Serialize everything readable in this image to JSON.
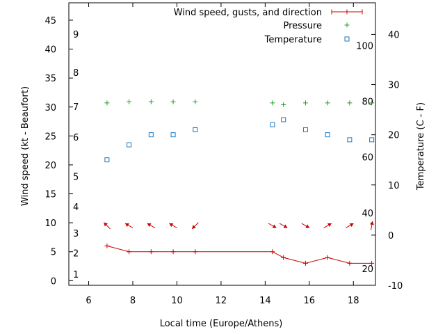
{
  "chart_data": {
    "type": "line",
    "xlabel": "Local time (Europe/Athens)",
    "ylabel_left": "Wind speed (kt - Beaufort)",
    "ylabel_right": "Temperature (C - F)",
    "xlim": [
      5.1,
      19.0
    ],
    "ylim_left": [
      -0.8,
      48.0
    ],
    "ylim_right": [
      -10.0,
      46.3
    ],
    "x_ticks": [
      6,
      8,
      10,
      12,
      14,
      16,
      18
    ],
    "y_ticks_left": [
      0,
      5,
      10,
      15,
      20,
      25,
      30,
      35,
      40,
      45
    ],
    "y_ticks_right": [
      -10,
      0,
      10,
      20,
      30,
      40
    ],
    "beaufort_labels": [
      {
        "label": "1",
        "kt": 1.1
      },
      {
        "label": "2",
        "kt": 4.8
      },
      {
        "label": "3",
        "kt": 8.2
      },
      {
        "label": "4",
        "kt": 12.8
      },
      {
        "label": "5",
        "kt": 18.0
      },
      {
        "label": "6",
        "kt": 24.8
      },
      {
        "label": "7",
        "kt": 30.1
      },
      {
        "label": "8",
        "kt": 36.0
      },
      {
        "label": "9",
        "kt": 42.6
      }
    ],
    "fahrenheit_labels": [
      {
        "label": "20",
        "c": -6.7
      },
      {
        "label": "40",
        "c": 4.4
      },
      {
        "label": "60",
        "c": 15.6
      },
      {
        "label": "80",
        "c": 26.7
      },
      {
        "label": "100",
        "c": 37.8
      }
    ],
    "legend_position": "top-right",
    "series": [
      {
        "name": "Wind speed, gusts, and direction",
        "color": "#cc0000",
        "axis": "left",
        "x": [
          6.83,
          7.83,
          8.83,
          9.83,
          10.83,
          14.33,
          14.83,
          15.83,
          16.83,
          17.83,
          18.83
        ],
        "y": [
          6,
          5,
          5,
          5,
          5,
          5,
          4,
          3,
          4,
          3,
          3
        ],
        "direction_deg": [
          315,
          300,
          300,
          300,
          225,
          120,
          120,
          120,
          60,
          60,
          10
        ]
      },
      {
        "name": "Pressure",
        "color": "#20a020",
        "axis": "left",
        "x": [
          6.83,
          7.83,
          8.83,
          9.83,
          10.83,
          14.33,
          14.83,
          15.83,
          16.83,
          17.83,
          18.83
        ],
        "y": [
          30.7,
          30.9,
          30.9,
          30.9,
          30.9,
          30.7,
          30.4,
          30.7,
          30.7,
          30.7,
          30.7
        ]
      },
      {
        "name": "Temperature",
        "color": "#1a78c2",
        "axis": "right",
        "x": [
          6.83,
          7.83,
          8.83,
          9.83,
          10.83,
          14.33,
          14.83,
          15.83,
          16.83,
          17.83,
          18.83
        ],
        "y": [
          15,
          18,
          20,
          20,
          21,
          22,
          23,
          21,
          20,
          19,
          19
        ]
      }
    ]
  }
}
